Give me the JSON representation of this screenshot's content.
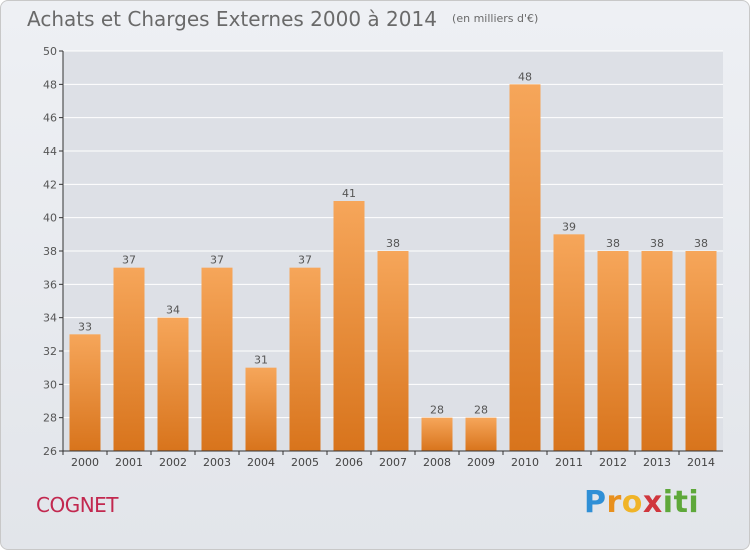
{
  "chart_data": {
    "type": "bar",
    "title": "Achats et Charges Externes 2000 à 2014",
    "subtitle": "(en milliers d'€)",
    "categories": [
      "2000",
      "2001",
      "2002",
      "2003",
      "2004",
      "2005",
      "2006",
      "2007",
      "2008",
      "2009",
      "2010",
      "2011",
      "2012",
      "2013",
      "2014"
    ],
    "values": [
      33,
      37,
      34,
      37,
      31,
      37,
      41,
      38,
      28,
      28,
      48,
      39,
      38,
      38,
      38
    ],
    "ylim": [
      26,
      50
    ],
    "yticks": [
      26,
      28,
      30,
      32,
      34,
      36,
      38,
      40,
      42,
      44,
      46,
      48,
      50
    ],
    "grid": "horizontal",
    "legend": "none",
    "bar_color_top": "#f6a65a",
    "bar_color_bottom": "#d8741c",
    "grid_color": "#ffffff",
    "axis_color": "#333333"
  },
  "footer": {
    "commune": "COGNET",
    "logo": "Proxiti",
    "commune_color": "#c2284f"
  }
}
